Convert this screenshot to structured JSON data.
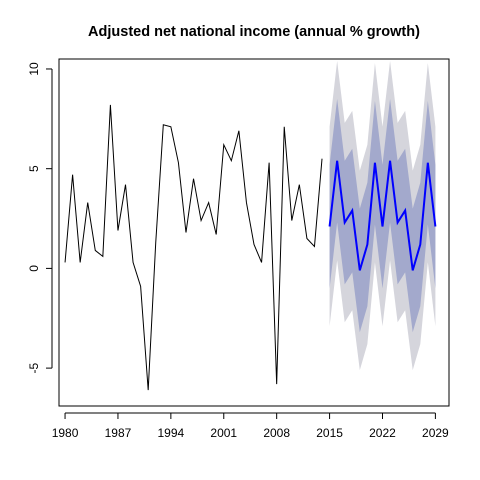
{
  "chart_data": {
    "type": "line",
    "title": "Adjusted net national income (annual % growth)",
    "xlabel": "",
    "ylabel": "",
    "xlim": [
      1979.2,
      2030.8
    ],
    "ylim": [
      -6.9,
      10.5
    ],
    "x_ticks": [
      1980,
      1987,
      1994,
      2001,
      2008,
      2015,
      2022,
      2029
    ],
    "y_ticks": [
      -5,
      0,
      5,
      10
    ],
    "grid": false,
    "legend": "none",
    "series": [
      {
        "role": "observed",
        "color": "#000000",
        "x": [
          1980,
          1981,
          1982,
          1983,
          1984,
          1985,
          1986,
          1987,
          1988,
          1989,
          1990,
          1991,
          1992,
          1993,
          1994,
          1995,
          1996,
          1997,
          1998,
          1999,
          2000,
          2001,
          2002,
          2003,
          2004,
          2005,
          2006,
          2007,
          2008,
          2009,
          2010,
          2011,
          2012,
          2013,
          2014
        ],
        "y": [
          0.3,
          4.7,
          0.3,
          3.3,
          0.9,
          0.6,
          8.2,
          1.9,
          4.2,
          0.3,
          -0.9,
          -6.1,
          1.3,
          7.2,
          7.1,
          5.3,
          1.8,
          4.5,
          2.4,
          3.3,
          1.7,
          6.2,
          5.4,
          6.9,
          3.3,
          1.2,
          0.3,
          5.3,
          -5.8,
          7.1,
          2.4,
          4.2,
          1.5,
          1.1,
          5.5
        ]
      },
      {
        "role": "forecast",
        "color": "#0000ff",
        "x": [
          2015,
          2016,
          2017,
          2018,
          2019,
          2020,
          2021,
          2022,
          2023,
          2024,
          2025,
          2026,
          2027,
          2028,
          2029
        ],
        "y": [
          2.1,
          5.4,
          2.3,
          2.9,
          -0.1,
          1.2,
          5.3,
          2.1,
          5.4,
          2.3,
          2.9,
          -0.1,
          1.2,
          5.3,
          2.1
        ],
        "band80": {
          "color": "#a3a9cc",
          "lower": [
            -1.0,
            2.3,
            -0.8,
            -0.2,
            -3.2,
            -1.9,
            2.2,
            -1.0,
            2.3,
            -0.8,
            -0.2,
            -3.2,
            -1.9,
            2.2,
            -1.0
          ],
          "upper": [
            5.2,
            8.5,
            5.4,
            6.0,
            3.0,
            4.3,
            8.4,
            5.2,
            8.5,
            5.4,
            6.0,
            3.0,
            4.3,
            8.4,
            5.2
          ]
        },
        "band95": {
          "color": "#d5d5dc",
          "lower": [
            -2.9,
            0.4,
            -2.7,
            -2.1,
            -5.1,
            -3.8,
            0.3,
            -2.9,
            0.4,
            -2.7,
            -2.1,
            -5.1,
            -3.8,
            0.3,
            -2.9
          ],
          "upper": [
            7.1,
            10.4,
            7.3,
            7.9,
            4.9,
            6.2,
            10.3,
            7.1,
            10.4,
            7.3,
            7.9,
            4.9,
            6.2,
            10.3,
            7.1
          ]
        }
      }
    ]
  }
}
